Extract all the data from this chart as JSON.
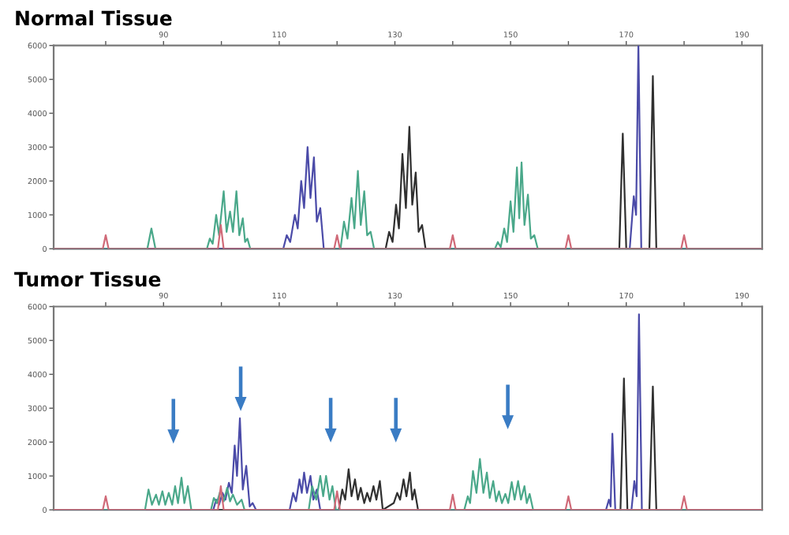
{
  "chart_data": [
    {
      "type": "line",
      "title": "Normal Tissue",
      "xlim": [
        71,
        193.5
      ],
      "ylim": [
        0,
        6000
      ],
      "xticks": [
        {
          "value": 80,
          "label": null
        },
        90,
        {
          "value": 100,
          "label": null
        },
        110,
        {
          "value": 120,
          "label": null
        },
        130,
        {
          "value": 140,
          "label": null
        },
        150,
        {
          "value": 160,
          "label": null
        },
        170,
        {
          "value": 180,
          "label": null
        },
        190
      ],
      "yticks": [
        0,
        1000,
        2000,
        3000,
        4000,
        5000,
        6000
      ],
      "grid": false,
      "series": [
        {
          "color": "#d06a78",
          "x": [
            71,
            79.5,
            80,
            80.5,
            99.4,
            99.9,
            100.4,
            119.5,
            120,
            120.5,
            139.5,
            140,
            140.5,
            159.5,
            160,
            160.5,
            179.5,
            180,
            180.5,
            193.5
          ],
          "values": [
            0,
            0,
            400,
            0,
            0,
            700,
            0,
            0,
            400,
            0,
            0,
            400,
            0,
            0,
            400,
            0,
            0,
            400,
            0,
            0
          ]
        },
        {
          "color": "#4aa88a",
          "x": [
            71,
            87.2,
            87.9,
            88.6,
            97.5,
            98,
            98.5,
            99.1,
            99.6,
            100.4,
            100.9,
            101.5,
            102,
            102.6,
            103.1,
            103.7,
            104.1,
            104.5,
            105,
            120.6,
            121.2,
            121.8,
            122.5,
            123,
            123.6,
            124.1,
            124.7,
            125.2,
            125.8,
            126.4,
            147.3,
            147.8,
            148.3,
            148.9,
            149.4,
            150,
            150.5,
            151.1,
            151.5,
            151.9,
            152.4,
            153,
            153.5,
            154.1,
            154.7,
            193.5
          ],
          "values": [
            0,
            0,
            600,
            0,
            0,
            300,
            150,
            1000,
            400,
            1700,
            500,
            1100,
            500,
            1700,
            400,
            900,
            200,
            300,
            0,
            0,
            800,
            300,
            1500,
            600,
            2300,
            700,
            1700,
            400,
            500,
            0,
            0,
            200,
            50,
            600,
            200,
            1400,
            500,
            2400,
            900,
            2550,
            700,
            1600,
            300,
            400,
            0,
            0
          ]
        },
        {
          "color": "#4b4ba8",
          "x": [
            71,
            110.7,
            111.3,
            111.9,
            112.7,
            113.2,
            113.8,
            114.3,
            114.9,
            115.4,
            116,
            116.5,
            117.1,
            117.7,
            170.6,
            171.3,
            171.7,
            172.1,
            172.6,
            193.5
          ],
          "values": [
            0,
            0,
            400,
            200,
            1000,
            600,
            2000,
            1200,
            3000,
            1500,
            2700,
            800,
            1200,
            0,
            0,
            1550,
            1000,
            6000,
            0,
            0
          ]
        },
        {
          "color": "#303030",
          "x": [
            71,
            128.4,
            129,
            129.6,
            130.2,
            130.7,
            131.3,
            131.9,
            132.5,
            133,
            133.6,
            134.1,
            134.7,
            135.3,
            168.8,
            169.4,
            170,
            174,
            174.6,
            175.2,
            193.5
          ],
          "values": [
            0,
            0,
            500,
            200,
            1300,
            600,
            2800,
            1200,
            3600,
            1300,
            2250,
            500,
            700,
            0,
            0,
            3400,
            0,
            0,
            5100,
            0,
            0
          ]
        }
      ]
    },
    {
      "type": "line",
      "title": "Tumor Tissue",
      "xlim": [
        71,
        193.5
      ],
      "ylim": [
        0,
        6000
      ],
      "xticks": [
        {
          "value": 80,
          "label": null
        },
        90,
        {
          "value": 100,
          "label": null
        },
        110,
        {
          "value": 120,
          "label": null
        },
        130,
        {
          "value": 140,
          "label": null
        },
        150,
        {
          "value": 160,
          "label": null
        },
        170,
        {
          "value": 180,
          "label": null
        },
        190
      ],
      "yticks": [
        0,
        1000,
        2000,
        3000,
        4000,
        5000,
        6000
      ],
      "grid": false,
      "series": [
        {
          "color": "#d06a78",
          "x": [
            71,
            79.5,
            80,
            80.5,
            99.4,
            99.9,
            100.4,
            119.5,
            120,
            120.5,
            139.5,
            140,
            140.5,
            159.5,
            160,
            160.5,
            179.5,
            180,
            180.5,
            193.5
          ],
          "values": [
            0,
            0,
            400,
            0,
            0,
            700,
            0,
            0,
            550,
            0,
            0,
            450,
            0,
            0,
            400,
            0,
            0,
            400,
            0,
            0
          ]
        },
        {
          "color": "#4aa88a",
          "x": [
            71,
            86.8,
            87.4,
            88,
            88.7,
            89.2,
            89.8,
            90.3,
            90.9,
            91.5,
            92,
            92.5,
            93.1,
            93.6,
            94.2,
            94.8,
            98.2,
            98.7,
            99.2,
            99.8,
            100.4,
            101,
            101.5,
            102,
            102.7,
            103.5,
            104,
            115.1,
            115.7,
            116.4,
            117.1,
            117.6,
            118.1,
            118.7,
            119.2,
            119.8,
            142,
            142.6,
            143,
            143.5,
            144.1,
            144.7,
            145.3,
            145.9,
            146.4,
            147,
            147.5,
            148,
            148.5,
            149.1,
            149.6,
            150.2,
            150.7,
            151.3,
            151.8,
            152.4,
            152.8,
            153.3,
            153.9,
            193.5
          ],
          "values": [
            0,
            0,
            600,
            150,
            450,
            150,
            550,
            150,
            500,
            150,
            700,
            200,
            950,
            200,
            700,
            0,
            0,
            350,
            200,
            550,
            250,
            650,
            250,
            450,
            150,
            300,
            0,
            0,
            700,
            300,
            1000,
            400,
            1000,
            300,
            700,
            0,
            0,
            400,
            200,
            1150,
            500,
            1500,
            500,
            1100,
            350,
            850,
            250,
            550,
            200,
            470,
            200,
            820,
            300,
            850,
            300,
            700,
            200,
            470,
            0,
            0
          ]
        },
        {
          "color": "#4b4ba8",
          "x": [
            71,
            98.6,
            99.1,
            99.6,
            100.2,
            100.7,
            101.3,
            101.8,
            102.3,
            102.7,
            103.2,
            103.7,
            104.3,
            104.9,
            105.4,
            106,
            111.8,
            112.4,
            112.9,
            113.5,
            113.9,
            114.3,
            114.8,
            115.4,
            115.9,
            116.5,
            117.1,
            166.5,
            167,
            167.3,
            167.6,
            168.1,
            170.9,
            171.4,
            171.8,
            172.2,
            172.7,
            193.5
          ],
          "values": [
            0,
            0,
            300,
            150,
            500,
            300,
            800,
            500,
            1900,
            1000,
            2700,
            600,
            1300,
            100,
            200,
            0,
            0,
            500,
            250,
            900,
            500,
            1100,
            500,
            1000,
            300,
            600,
            0,
            0,
            300,
            100,
            2250,
            0,
            0,
            850,
            400,
            5770,
            0,
            0
          ]
        },
        {
          "color": "#303030",
          "x": [
            71,
            120.3,
            120.9,
            121.4,
            122,
            122.5,
            123.1,
            123.6,
            124.1,
            124.7,
            125.2,
            125.7,
            126.3,
            126.8,
            127.4,
            127.9,
            129.8,
            130.4,
            130.9,
            131.5,
            132,
            132.6,
            133,
            133.4,
            134,
            169,
            169.6,
            170.2,
            174,
            174.6,
            175.2,
            193.5
          ],
          "values": [
            0,
            0,
            600,
            300,
            1200,
            400,
            900,
            300,
            650,
            200,
            500,
            250,
            700,
            300,
            850,
            0,
            200,
            500,
            300,
            900,
            400,
            1100,
            300,
            600,
            0,
            0,
            3880,
            0,
            0,
            3640,
            0,
            0
          ]
        }
      ]
    }
  ]
}
